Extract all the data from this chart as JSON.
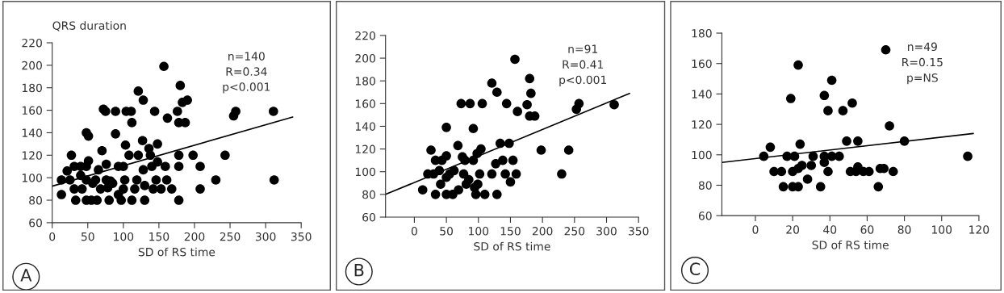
{
  "chart_data": [
    {
      "type": "scatter",
      "xlabel": "SD of RS time",
      "ylabel": "QRS duration",
      "xlim": [
        0,
        350
      ],
      "ylim": [
        60,
        220
      ],
      "xticks": [
        0,
        50,
        100,
        150,
        200,
        250,
        300,
        350
      ],
      "yticks": [
        60,
        80,
        100,
        120,
        140,
        160,
        180,
        200,
        220
      ],
      "line_style": "solid",
      "annotations": [
        "n=140",
        "R=0.34",
        "p<0.001",
        "A"
      ],
      "series": [
        {
          "marker": "circle",
          "color": "#000000",
          "x": [
            13,
            13,
            27,
            21,
            25,
            31,
            31,
            33,
            40,
            42,
            40,
            48,
            48,
            51,
            51,
            48,
            48,
            55,
            57,
            61,
            63,
            65,
            68,
            70,
            72,
            75,
            76,
            76,
            78,
            80,
            82,
            85,
            89,
            89,
            93,
            93,
            97,
            100,
            100,
            102,
            103,
            104,
            108,
            111,
            112,
            112,
            116,
            119,
            121,
            121,
            127,
            128,
            128,
            130,
            130,
            136,
            138,
            140,
            142,
            144,
            146,
            148,
            148,
            153,
            157,
            159,
            161,
            162,
            168,
            176,
            178,
            178,
            178,
            178,
            180,
            183,
            187,
            190,
            198,
            208,
            208,
            230,
            243,
            255,
            258,
            311,
            312
          ],
          "values": [
            98,
            85,
            120,
            106,
            98,
            110,
            90,
            80,
            110,
            90,
            102,
            110,
            140,
            137,
            115,
            98,
            80,
            80,
            95,
            98,
            80,
            107,
            90,
            124,
            161,
            159,
            112,
            98,
            91,
            80,
            97,
            95,
            159,
            139,
            110,
            85,
            80,
            110,
            90,
            98,
            129,
            159,
            120,
            159,
            149,
            80,
            90,
            98,
            120,
            177,
            133,
            169,
            107,
            80,
            93,
            126,
            120,
            110,
            90,
            159,
            98,
            130,
            114,
            90,
            199,
            110,
            98,
            153,
            90,
            159,
            80,
            120,
            110,
            149,
            182,
            167,
            149,
            169,
            120,
            110,
            90,
            98,
            120,
            155,
            159,
            159,
            98
          ]
        },
        {
          "type": "line",
          "color": "#000000",
          "x": [
            0,
            338
          ],
          "values": [
            92.5,
            154
          ]
        }
      ]
    },
    {
      "type": "scatter",
      "xlabel": "SD of RS time",
      "xlim": [
        -45,
        350
      ],
      "ylim": [
        60,
        220
      ],
      "xticks": [
        0,
        50,
        100,
        150,
        200,
        250,
        300,
        350
      ],
      "yticks": [
        60,
        80,
        100,
        120,
        140,
        160,
        180,
        200,
        220
      ],
      "line_style": "solid",
      "annotations": [
        "n=91",
        "R=0.41",
        "p<0.001",
        "B"
      ],
      "series": [
        {
          "marker": "circle",
          "color": "#000000",
          "x": [
            13,
            21,
            26,
            30,
            33,
            33,
            39,
            41,
            43,
            50,
            50,
            50,
            50,
            55,
            60,
            62,
            68,
            69,
            73,
            75,
            77,
            79,
            81,
            87,
            85,
            92,
            92,
            94,
            96,
            98,
            99,
            102,
            104,
            106,
            110,
            121,
            121,
            129,
            129,
            127,
            134,
            138,
            142,
            144,
            148,
            150,
            154,
            157,
            159,
            161,
            176,
            180,
            182,
            180,
            188,
            198,
            230,
            241,
            253,
            257,
            312
          ],
          "values": [
            84,
            98,
            119,
            98,
            80,
            110,
            101,
            89,
            110,
            139,
            114,
            95,
            80,
            98,
            80,
            101,
            123,
            84,
            160,
            113,
            98,
            110,
            89,
            160,
            93,
            138,
            110,
            86,
            80,
            116,
            89,
            98,
            120,
            160,
            80,
            98,
            178,
            170,
            80,
            107,
            125,
            110,
            98,
            160,
            125,
            91,
            110,
            199,
            98,
            153,
            159,
            182,
            169,
            149,
            149,
            119,
            98,
            119,
            155,
            160,
            159
          ]
        },
        {
          "type": "line",
          "color": "#000000",
          "x": [
            -45,
            336
          ],
          "values": [
            80,
            169
          ]
        }
      ]
    },
    {
      "type": "scatter",
      "xlabel": "SD of RS time",
      "xlim": [
        -18,
        120
      ],
      "ylim": [
        60,
        180
      ],
      "xticks": [
        0,
        20,
        40,
        60,
        80,
        100,
        120
      ],
      "yticks": [
        60,
        80,
        100,
        120,
        140,
        160,
        180
      ],
      "line_style": "solid",
      "annotations": [
        "n=49",
        "R=0.15",
        "p=NS",
        "C"
      ],
      "series": [
        {
          "marker": "circle",
          "color": "#000000",
          "x": [
            4.5,
            8,
            10,
            14,
            15,
            17,
            19,
            20,
            20,
            21,
            23,
            23,
            23,
            24,
            25,
            28,
            30,
            31,
            35,
            37,
            37,
            37,
            39,
            39,
            41,
            41,
            45,
            47,
            49,
            51,
            52,
            55,
            55,
            54,
            58,
            61,
            66,
            67,
            69,
            70,
            72,
            74,
            80,
            114
          ],
          "values": [
            99,
            105,
            89,
            89,
            79,
            99,
            137,
            79,
            89,
            99,
            79,
            159,
            91,
            107,
            93,
            84,
            93,
            99,
            79,
            95,
            99,
            139,
            129,
            89,
            99,
            149,
            99,
            129,
            109,
            89,
            134,
            109,
            92,
            89,
            89,
            89,
            79,
            91,
            91,
            169,
            119,
            89,
            109,
            99
          ]
        },
        {
          "type": "line",
          "color": "#000000",
          "x": [
            -18,
            117
          ],
          "values": [
            95,
            114
          ]
        }
      ]
    }
  ]
}
